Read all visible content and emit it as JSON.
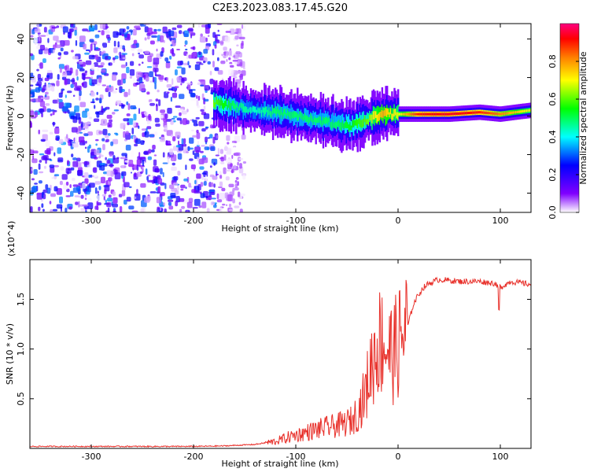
{
  "title": "C2E3.2023.083.17.45.G20",
  "chart_data": [
    {
      "type": "heatmap",
      "title": "C2E3.2023.083.17.45.G20",
      "xlabel": "Height of straight line (km)",
      "ylabel": "Frequency (Hz)",
      "xlim": [
        -360,
        130
      ],
      "ylim": [
        -50,
        48
      ],
      "xticks": [
        -300,
        -200,
        -100,
        0,
        100
      ],
      "yticks": [
        -40,
        -20,
        0,
        20,
        40
      ],
      "colorbar": {
        "label": "Normalized spectral amplitude",
        "range": [
          0.0,
          1.0
        ],
        "ticks": [
          "0.0",
          "0.2",
          "0.4",
          "0.6",
          "0.8"
        ],
        "colormap": [
          "#ffffff",
          "#8000ff",
          "#0000ff",
          "#00ffff",
          "#00ff00",
          "#ffff00",
          "#ff8000",
          "#ff0000",
          "#ff0080"
        ]
      },
      "noise_region": {
        "x": [
          -360,
          -175
        ],
        "y": [
          -50,
          48
        ],
        "level": 0.25
      },
      "ridge": [
        {
          "x": -180,
          "y": 7,
          "amp": 0.55
        },
        {
          "x": -160,
          "y": 5,
          "amp": 0.45
        },
        {
          "x": -140,
          "y": 3,
          "amp": 0.4
        },
        {
          "x": -120,
          "y": 2,
          "amp": 0.45
        },
        {
          "x": -100,
          "y": 0,
          "amp": 0.45
        },
        {
          "x": -80,
          "y": -2,
          "amp": 0.45
        },
        {
          "x": -60,
          "y": -4,
          "amp": 0.45
        },
        {
          "x": -45,
          "y": -5,
          "amp": 0.5
        },
        {
          "x": -30,
          "y": -2,
          "amp": 0.55
        },
        {
          "x": -15,
          "y": 1,
          "amp": 0.7
        },
        {
          "x": 0,
          "y": 1,
          "amp": 0.6
        },
        {
          "x": 20,
          "y": 1,
          "amp": 0.85
        },
        {
          "x": 50,
          "y": 1,
          "amp": 0.9
        },
        {
          "x": 80,
          "y": 2,
          "amp": 0.85
        },
        {
          "x": 100,
          "y": 1,
          "amp": 0.75
        },
        {
          "x": 130,
          "y": 3,
          "amp": 0.6
        }
      ]
    },
    {
      "type": "line",
      "xlabel": "Height of straight line (km)",
      "ylabel": "SNR (10 * v/v)",
      "y_multiplier": "(x10^4)",
      "xlim": [
        -360,
        130
      ],
      "ylim": [
        0,
        1.9
      ],
      "xticks": [
        -300,
        -200,
        -100,
        0,
        100
      ],
      "yticks": [
        "0.5",
        "1.0",
        "1.5"
      ],
      "ytick_values": [
        0.5,
        1.0,
        1.5
      ],
      "color": "#e8302a",
      "series": [
        {
          "x": [
            -360,
            -300,
            -250,
            -200,
            -170,
            -140,
            -120,
            -105,
            -90,
            -75,
            -65,
            -55,
            -45,
            -38,
            -32,
            -26,
            -20,
            -15,
            -10,
            -5,
            0,
            5,
            10,
            15,
            20,
            25,
            30,
            40,
            60,
            80,
            95,
            100,
            110,
            130
          ],
          "y": [
            0.02,
            0.02,
            0.02,
            0.02,
            0.025,
            0.04,
            0.07,
            0.12,
            0.16,
            0.2,
            0.22,
            0.24,
            0.28,
            0.4,
            0.55,
            0.85,
            1.05,
            1.1,
            1.0,
            0.95,
            1.05,
            1.15,
            1.25,
            1.45,
            1.55,
            1.62,
            1.66,
            1.7,
            1.68,
            1.68,
            1.66,
            1.62,
            1.68,
            1.65
          ]
        }
      ]
    }
  ]
}
